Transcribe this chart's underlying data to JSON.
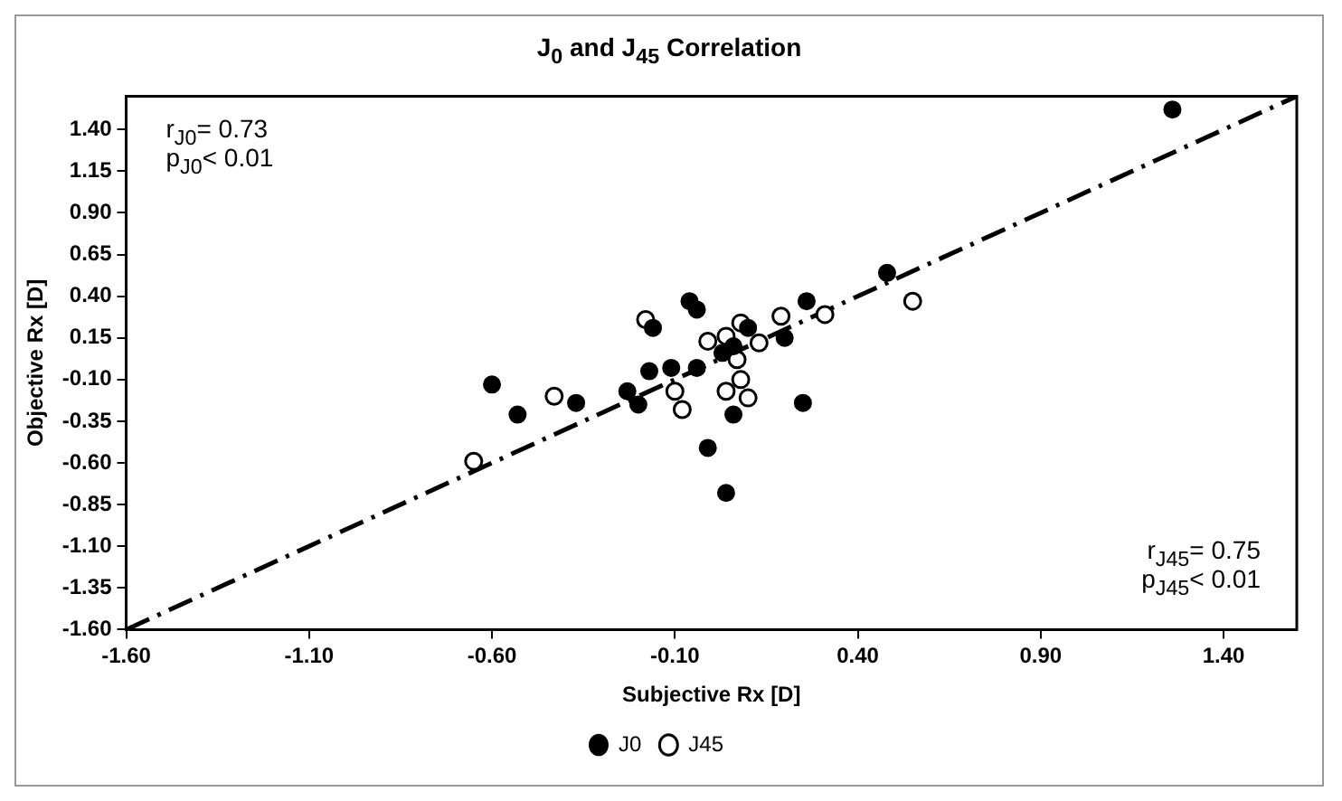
{
  "chart_data": {
    "type": "scatter",
    "title": "J$_{0}$ and J$_{45}$ Correlation",
    "xlabel": "Subjective Rx [D]",
    "ylabel": "Objective Rx [D]",
    "xlim": [
      -1.6,
      1.6
    ],
    "ylim": [
      -1.6,
      1.6
    ],
    "xticks": [
      {
        "value": -1.6,
        "label": "-1.60"
      },
      {
        "value": -1.1,
        "label": "-1.10"
      },
      {
        "value": -0.6,
        "label": "-0.60"
      },
      {
        "value": -0.1,
        "label": "-0.10"
      },
      {
        "value": 0.4,
        "label": "0.40"
      },
      {
        "value": 0.9,
        "label": "0.90"
      },
      {
        "value": 1.4,
        "label": "1.40"
      }
    ],
    "yticks": [
      {
        "value": -1.6,
        "label": "-1.60"
      },
      {
        "value": -1.35,
        "label": "-1.35"
      },
      {
        "value": -1.1,
        "label": "-1.10"
      },
      {
        "value": -0.85,
        "label": "-0.85"
      },
      {
        "value": -0.6,
        "label": "-0.60"
      },
      {
        "value": -0.35,
        "label": "-0.35"
      },
      {
        "value": -0.1,
        "label": "-0.10"
      },
      {
        "value": 0.15,
        "label": "0.15"
      },
      {
        "value": 0.4,
        "label": "0.40"
      },
      {
        "value": 0.65,
        "label": "0.65"
      },
      {
        "value": 0.9,
        "label": "0.90"
      },
      {
        "value": 1.15,
        "label": "1.15"
      },
      {
        "value": 1.4,
        "label": "1.40"
      }
    ],
    "grid": false,
    "legend": "bottom",
    "marker": "circle",
    "series": [
      {
        "name": "J0",
        "color": "#000000",
        "x": [
          -0.6,
          -0.53,
          -0.37,
          -0.23,
          -0.2,
          -0.17,
          -0.11,
          -0.16,
          -0.06,
          -0.04,
          -0.04,
          0.03,
          0.06,
          -0.01,
          0.04,
          0.1,
          0.2,
          0.25,
          0.26,
          0.48,
          1.26,
          0.06
        ],
        "values": [
          -0.13,
          -0.31,
          -0.24,
          -0.17,
          -0.25,
          -0.05,
          -0.03,
          0.21,
          0.37,
          0.32,
          -0.03,
          0.06,
          -0.31,
          -0.51,
          -0.78,
          0.21,
          0.15,
          -0.24,
          0.37,
          0.54,
          1.52,
          0.1
        ]
      },
      {
        "name": "J45",
        "color": "#000000",
        "x": [
          -0.65,
          -0.43,
          -0.18,
          -0.1,
          -0.08,
          -0.01,
          0.04,
          0.08,
          0.07,
          0.08,
          0.04,
          0.1,
          0.13,
          0.19,
          0.31,
          0.55
        ],
        "values": [
          -0.59,
          -0.2,
          0.26,
          -0.17,
          -0.28,
          0.13,
          0.16,
          0.24,
          0.02,
          -0.1,
          -0.17,
          -0.21,
          0.12,
          0.28,
          0.29,
          0.37
        ]
      },
      {
        "type": "line",
        "color": "#000000",
        "line_style": "dashed",
        "marker": "none",
        "x": [
          -1.6,
          1.6
        ],
        "values": [
          -1.6,
          1.6
        ]
      }
    ],
    "annotations": [
      "r$_{J0}$= 0.73",
      "p$_{J0}$< 0.01",
      "r$_{J45}$= 0.75",
      "p$_{J45}$< 0.01"
    ]
  }
}
